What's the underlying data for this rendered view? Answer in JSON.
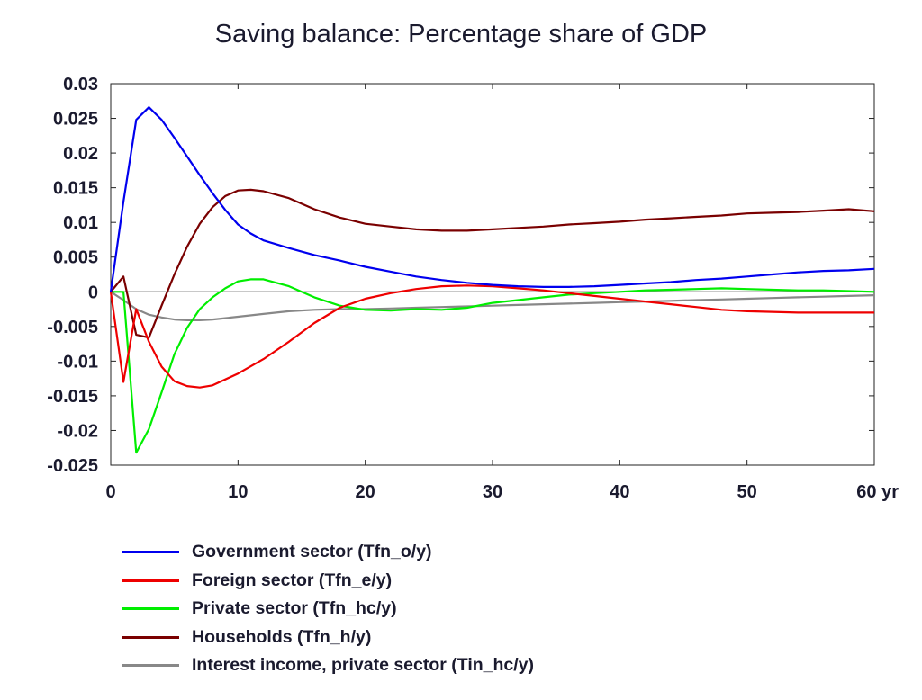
{
  "chart_data": {
    "type": "line",
    "title": "Saving balance: Percentage share of GDP",
    "xlabel": "",
    "ylabel": "",
    "xlim": [
      0,
      60
    ],
    "ylim": [
      -0.025,
      0.03
    ],
    "x_ticks": [
      "0",
      "10",
      "20",
      "30",
      "40",
      "50",
      "60 yr"
    ],
    "y_ticks": [
      "0.03",
      "0.025",
      "0.02",
      "0.015",
      "0.01",
      "0.005",
      "0",
      "-0.005",
      "-0.01",
      "-0.015",
      "-0.02",
      "-0.025"
    ],
    "grid": false,
    "zero_line": true,
    "legend_position": "bottom",
    "series": [
      {
        "name": "Government sector (Tfn_o/y)",
        "color": "#0000ee",
        "x": [
          0,
          1,
          2,
          3,
          4,
          5,
          6,
          7,
          8,
          9,
          10,
          11,
          12,
          14,
          16,
          18,
          20,
          22,
          24,
          26,
          28,
          30,
          32,
          34,
          36,
          38,
          40,
          42,
          44,
          46,
          48,
          50,
          52,
          54,
          56,
          58,
          60
        ],
        "values": [
          0,
          0.013,
          0.0248,
          0.0266,
          0.0248,
          0.0222,
          0.0195,
          0.0168,
          0.0142,
          0.0118,
          0.0097,
          0.0084,
          0.0074,
          0.0063,
          0.0053,
          0.0045,
          0.0036,
          0.0029,
          0.0022,
          0.0017,
          0.0013,
          0.001,
          0.0008,
          0.0007,
          0.0007,
          0.0008,
          0.001,
          0.0012,
          0.0014,
          0.0017,
          0.0019,
          0.0022,
          0.0025,
          0.0028,
          0.003,
          0.0031,
          0.0033
        ]
      },
      {
        "name": "Foreign sector (Tfn_e/y)",
        "color": "#ee0000",
        "x": [
          0,
          1,
          2,
          3,
          4,
          5,
          6,
          7,
          8,
          10,
          12,
          14,
          16,
          18,
          20,
          22,
          24,
          26,
          28,
          30,
          32,
          34,
          36,
          38,
          40,
          42,
          44,
          46,
          48,
          50,
          52,
          54,
          56,
          58,
          60
        ],
        "values": [
          0,
          -0.013,
          -0.0025,
          -0.0072,
          -0.0108,
          -0.0129,
          -0.0136,
          -0.0138,
          -0.0135,
          -0.0118,
          -0.0097,
          -0.0072,
          -0.0045,
          -0.0023,
          -0.001,
          -0.0002,
          0.0004,
          0.0008,
          0.0009,
          0.0008,
          0.0005,
          0.0002,
          -0.0002,
          -0.0006,
          -0.001,
          -0.0014,
          -0.0018,
          -0.0022,
          -0.0026,
          -0.0028,
          -0.0029,
          -0.003,
          -0.003,
          -0.003,
          -0.003
        ]
      },
      {
        "name": "Private sector (Tfn_hc/y)",
        "color": "#00ee00",
        "x": [
          0,
          1,
          2,
          3,
          4,
          5,
          6,
          7,
          8,
          9,
          10,
          11,
          12,
          14,
          16,
          18,
          20,
          22,
          24,
          26,
          28,
          30,
          32,
          34,
          36,
          38,
          40,
          42,
          44,
          46,
          48,
          50,
          52,
          54,
          56,
          58,
          60
        ],
        "values": [
          0,
          0,
          -0.0232,
          -0.0198,
          -0.0145,
          -0.009,
          -0.0052,
          -0.0025,
          -0.0008,
          0.0005,
          0.0015,
          0.0018,
          0.0018,
          0.0008,
          -0.0008,
          -0.002,
          -0.0026,
          -0.0027,
          -0.0025,
          -0.0026,
          -0.0023,
          -0.0016,
          -0.0012,
          -0.0008,
          -0.0004,
          -0.0002,
          0,
          0.0002,
          0.0003,
          0.0004,
          0.0005,
          0.0004,
          0.0003,
          0.0002,
          0.0002,
          0.0001,
          0
        ]
      },
      {
        "name": "Households (Tfn_h/y)",
        "color": "#7a0000",
        "x": [
          0,
          1,
          2,
          3,
          4,
          5,
          6,
          7,
          8,
          9,
          10,
          11,
          12,
          14,
          16,
          18,
          20,
          22,
          24,
          26,
          28,
          30,
          32,
          34,
          36,
          38,
          40,
          42,
          44,
          46,
          48,
          50,
          52,
          54,
          56,
          58,
          60
        ],
        "values": [
          0,
          0.0022,
          -0.0062,
          -0.0066,
          -0.002,
          0.0025,
          0.0065,
          0.0098,
          0.0122,
          0.0138,
          0.0146,
          0.0147,
          0.0145,
          0.0135,
          0.0119,
          0.0107,
          0.0098,
          0.0094,
          0.009,
          0.0088,
          0.0088,
          0.009,
          0.0092,
          0.0094,
          0.0097,
          0.0099,
          0.0101,
          0.0104,
          0.0106,
          0.0108,
          0.011,
          0.0113,
          0.0114,
          0.0115,
          0.0117,
          0.0119,
          0.0116
        ]
      },
      {
        "name": "Interest income, private sector (Tin_hc/y)",
        "color": "#888888",
        "x": [
          0,
          1,
          2,
          3,
          4,
          5,
          6,
          7,
          8,
          9,
          10,
          12,
          14,
          16,
          18,
          20,
          22,
          24,
          26,
          28,
          30,
          32,
          34,
          36,
          38,
          40,
          42,
          44,
          46,
          48,
          50,
          52,
          54,
          56,
          58,
          60
        ],
        "values": [
          0,
          -0.0012,
          -0.0025,
          -0.0033,
          -0.0037,
          -0.004,
          -0.0041,
          -0.0041,
          -0.004,
          -0.0038,
          -0.0036,
          -0.0032,
          -0.0028,
          -0.0026,
          -0.0025,
          -0.0025,
          -0.0024,
          -0.0023,
          -0.0022,
          -0.0021,
          -0.002,
          -0.0019,
          -0.0018,
          -0.0017,
          -0.0016,
          -0.0015,
          -0.0014,
          -0.0013,
          -0.0012,
          -0.0011,
          -0.001,
          -0.0009,
          -0.0008,
          -0.0007,
          -0.0006,
          -0.0005
        ]
      }
    ]
  }
}
